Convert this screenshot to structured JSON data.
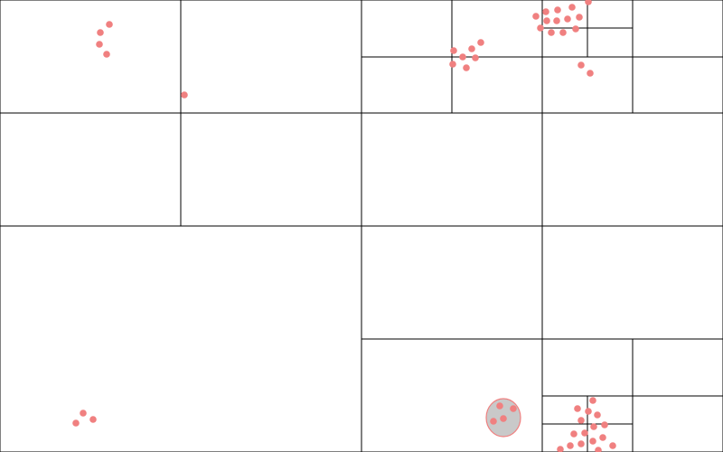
{
  "colors": {
    "background": "#ffffff",
    "lines": "#000000",
    "points": "#f08080",
    "query_fill": "#c0c0c0",
    "query_stroke": "#f08080"
  },
  "diagram": {
    "kind": "quadtree",
    "labels": []
  }
}
